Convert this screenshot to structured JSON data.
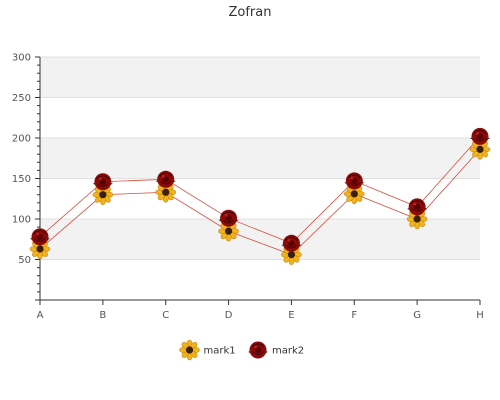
{
  "chart_data": {
    "type": "line",
    "title": "Zofran",
    "categories": [
      "A",
      "B",
      "C",
      "D",
      "E",
      "F",
      "G",
      "H"
    ],
    "ylim": [
      0,
      300
    ],
    "yticks": [
      50,
      100,
      150,
      200,
      250,
      300
    ],
    "grid": true,
    "legend_position": "bottom",
    "series": [
      {
        "name": "mark1",
        "values": [
          63,
          130,
          133,
          85,
          56,
          131,
          100,
          186
        ],
        "color": "#d94c3d",
        "marker": "sunflower"
      },
      {
        "name": "mark2",
        "values": [
          78,
          146,
          149,
          101,
          70,
          147,
          115,
          202
        ],
        "color": "#d94c3d",
        "marker": "rose"
      }
    ]
  }
}
